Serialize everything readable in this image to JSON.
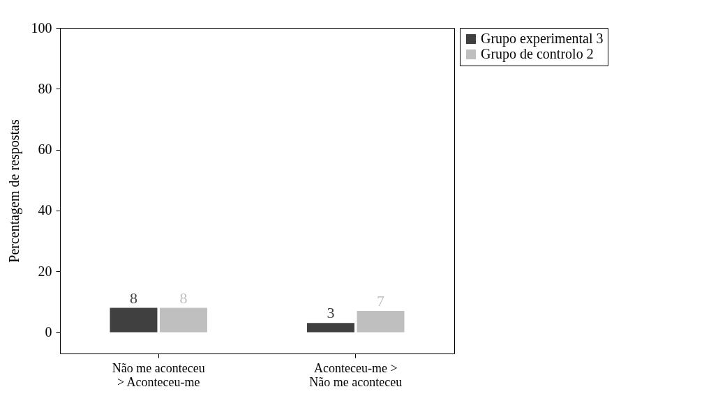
{
  "chart_data": {
    "type": "bar",
    "ylabel": "Percentagem de respostas",
    "categories": [
      "Não me aconteceu > Aconteceu-me",
      "Aconteceu-me > Não me aconteceu"
    ],
    "series": [
      {
        "name": "Grupo experimental 3",
        "color": "#404040",
        "values": [
          8,
          3
        ]
      },
      {
        "name": "Grupo de controlo 2",
        "color": "#bfbfbf",
        "values": [
          8,
          7
        ]
      }
    ],
    "ylim": [
      -7,
      100
    ],
    "yticks": [
      0,
      20,
      40,
      60,
      80,
      100
    ],
    "grid": false,
    "legend": "top right",
    "data_labels": true
  }
}
